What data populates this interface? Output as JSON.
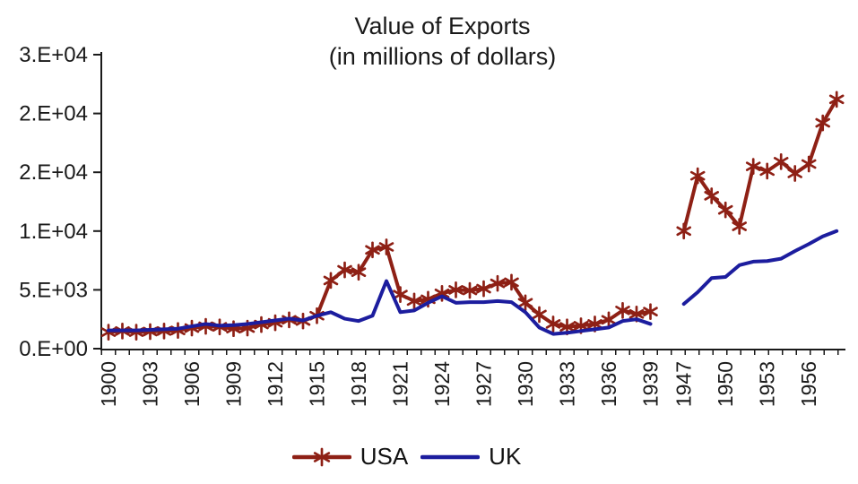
{
  "title": {
    "line1": "Value of Exports",
    "line2": "(in millions of dollars)"
  },
  "chart_data": {
    "type": "line",
    "title": "Value of Exports",
    "subtitle": "(in millions of dollars)",
    "ylim": [
      0,
      25000
    ],
    "grid": false,
    "legend_position": "bottom",
    "y_ticks": [
      {
        "value": 0,
        "label": "0.E+00"
      },
      {
        "value": 5000,
        "label": "5.E+03"
      },
      {
        "value": 10000,
        "label": "1.E+04"
      },
      {
        "value": 15000,
        "label": "2.E+04"
      },
      {
        "value": 20000,
        "label": "2.E+04"
      },
      {
        "value": 25000,
        "label": "3.E+04"
      }
    ],
    "x_tick_labels": [
      "1900",
      "1903",
      "1906",
      "1909",
      "1912",
      "1915",
      "1918",
      "1921",
      "1924",
      "1927",
      "1930",
      "1933",
      "1936",
      "1939",
      "1947",
      "1950",
      "1953",
      "1956"
    ],
    "gap_note": "no data plotted between 1939 and 1947",
    "series": [
      {
        "name": "USA",
        "color": "#8e2015",
        "marker": "star",
        "segments": [
          {
            "years": [
              1900,
              1901,
              1902,
              1903,
              1904,
              1905,
              1906,
              1907,
              1908,
              1909,
              1910,
              1911,
              1912,
              1913,
              1914,
              1915,
              1916,
              1917,
              1918,
              1919,
              1920,
              1921,
              1922,
              1923,
              1924,
              1925,
              1926,
              1927,
              1928,
              1929,
              1930,
              1931,
              1932,
              1933,
              1934,
              1935,
              1936,
              1937,
              1938,
              1939
            ],
            "values": [
              1400,
              1500,
              1400,
              1450,
              1500,
              1550,
              1750,
              1900,
              1850,
              1700,
              1750,
              2050,
              2200,
              2450,
              2350,
              2800,
              5800,
              6700,
              6500,
              8400,
              8650,
              4600,
              4050,
              4200,
              4700,
              5000,
              4950,
              5100,
              5550,
              5650,
              3900,
              2900,
              2100,
              1850,
              1950,
              2100,
              2450,
              3250,
              2950,
              3150
            ]
          },
          {
            "years": [
              1947,
              1948,
              1949,
              1950,
              1951,
              1952,
              1953,
              1954,
              1955,
              1956,
              1957,
              1958
            ],
            "values": [
              10000,
              14700,
              13000,
              11800,
              10400,
              15500,
              15100,
              15900,
              14900,
              15700,
              19200,
              21200
            ]
          }
        ]
      },
      {
        "name": "UK",
        "color": "#1c1d9e",
        "marker": "none",
        "segments": [
          {
            "years": [
              1900,
              1901,
              1902,
              1903,
              1904,
              1905,
              1906,
              1907,
              1908,
              1909,
              1910,
              1911,
              1912,
              1913,
              1914,
              1915,
              1916,
              1917,
              1918,
              1919,
              1920,
              1921,
              1922,
              1923,
              1924,
              1925,
              1926,
              1927,
              1928,
              1929,
              1930,
              1931,
              1932,
              1933,
              1934,
              1935,
              1936,
              1937,
              1938,
              1939
            ],
            "values": [
              1550,
              1550,
              1550,
              1600,
              1650,
              1700,
              1900,
              2100,
              1950,
              2000,
              2100,
              2250,
              2400,
              2550,
              2400,
              2800,
              3100,
              2550,
              2350,
              2800,
              5750,
              3100,
              3250,
              3900,
              4450,
              3900,
              3950,
              3950,
              4050,
              3950,
              3100,
              1800,
              1250,
              1350,
              1500,
              1650,
              1800,
              2350,
              2500,
              2100
            ]
          },
          {
            "years": [
              1947,
              1948,
              1949,
              1950,
              1951,
              1952,
              1953,
              1954,
              1955,
              1956,
              1957,
              1958
            ],
            "values": [
              3800,
              4800,
              6000,
              6100,
              7100,
              7400,
              7450,
              7650,
              8300,
              8900,
              9550,
              10000
            ]
          }
        ]
      }
    ]
  },
  "legend": {
    "items": [
      {
        "label": "USA"
      },
      {
        "label": "UK"
      }
    ]
  },
  "colors": {
    "axis": "#1a1a1a",
    "text": "#1a1a1a",
    "background": "#ffffff"
  }
}
